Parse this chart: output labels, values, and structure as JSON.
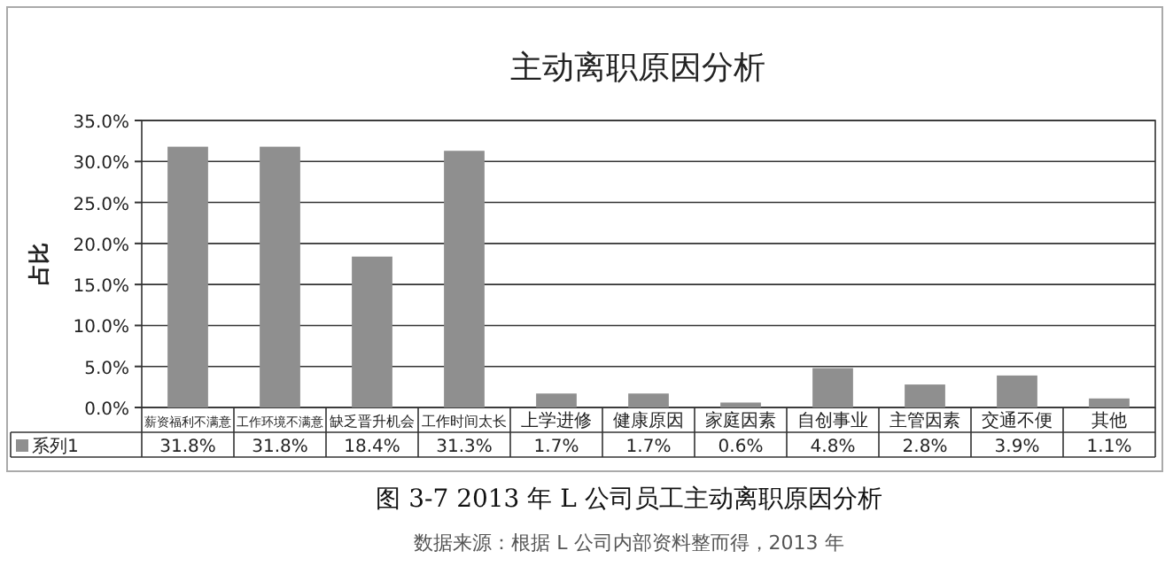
{
  "chart_data": {
    "type": "bar",
    "title": "主动离职原因分析",
    "ylabel": "占比",
    "categories": [
      "薪资福利不满意",
      "工作环境不满意",
      "缺乏晋升机会",
      "工作时间太长",
      "上学进修",
      "健康原因",
      "家庭因素",
      "自创事业",
      "主管因素",
      "交通不便",
      "其他"
    ],
    "series": [
      {
        "name": "系列1",
        "color": "#8f8f8f",
        "values": [
          31.8,
          31.8,
          18.4,
          31.3,
          1.7,
          1.7,
          0.6,
          4.8,
          2.8,
          3.9,
          1.1
        ],
        "value_labels": [
          "31.8%",
          "31.8%",
          "18.4%",
          "31.3%",
          "1.7%",
          "1.7%",
          "0.6%",
          "4.8%",
          "2.8%",
          "3.9%",
          "1.1%"
        ]
      }
    ],
    "ylim": [
      0,
      35
    ],
    "yticks": [
      {
        "value": 0,
        "label": "0.0%"
      },
      {
        "value": 5,
        "label": "5.0%"
      },
      {
        "value": 10,
        "label": "10.0%"
      },
      {
        "value": 15,
        "label": "15.0%"
      },
      {
        "value": 20,
        "label": "20.0%"
      },
      {
        "value": 25,
        "label": "25.0%"
      },
      {
        "value": 30,
        "label": "30.0%"
      },
      {
        "value": 35,
        "label": "35.0%"
      }
    ],
    "grid": "y",
    "annotations": [
      "图 3-7  2013 年 L 公司员工主动离职原因分析",
      "数据来源：根据 L 公司内部资料整而得，2013 年"
    ]
  }
}
